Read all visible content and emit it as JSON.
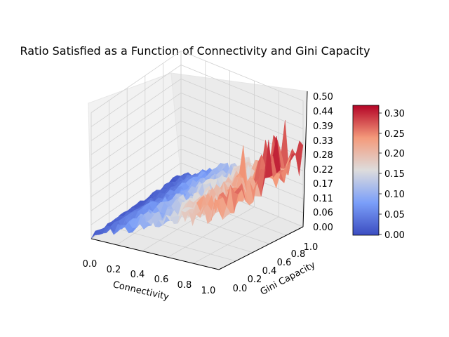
{
  "chart_data": {
    "type": "surface3d",
    "title": "Ratio Satisfied as a Function of Connectivity and Gini Capacity",
    "xlabel": "Connectivity",
    "ylabel": "Gini Capacity",
    "zlabel": "",
    "xlim": [
      0,
      1
    ],
    "ylim": [
      0,
      1
    ],
    "zlim": [
      0,
      0.5
    ],
    "x_ticks": [
      "0.0",
      "0.2",
      "0.4",
      "0.6",
      "0.8",
      "1.0"
    ],
    "y_ticks": [
      "0.0",
      "0.2",
      "0.4",
      "0.6",
      "0.8",
      "1.0"
    ],
    "z_ticks": [
      "0.00",
      "0.06",
      "0.11",
      "0.17",
      "0.22",
      "0.28",
      "0.33",
      "0.39",
      "0.44",
      "0.50"
    ],
    "colormap": "coolwarm",
    "colorbar": {
      "ticks": [
        "0.00",
        "0.05",
        "0.10",
        "0.15",
        "0.20",
        "0.25",
        "0.30"
      ],
      "range": [
        0,
        0.32
      ]
    },
    "trend": "ratio increases roughly linearly with connectivity from ~0.01 to ~0.25, with noisy spikes up to ~0.32 at high connectivity and high Gini capacity",
    "grid": true
  }
}
